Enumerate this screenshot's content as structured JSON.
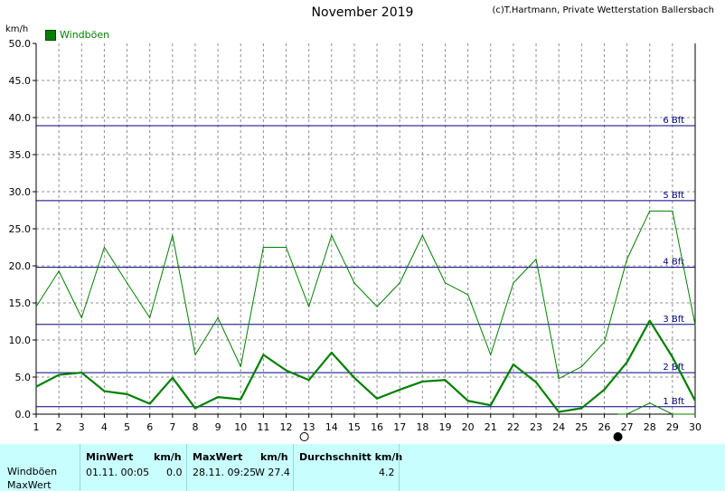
{
  "header": {
    "title": "November 2019",
    "credit": "(c)T.Hartmann, Private Wetterstation Ballersbach",
    "unit": "km/h",
    "legend": "Windböen"
  },
  "chart_data": {
    "type": "line",
    "title": "November 2019",
    "ylabel": "km/h",
    "xlabel": "",
    "xlim": [
      1,
      30
    ],
    "ylim": [
      0,
      50
    ],
    "x_ticks": [
      1,
      2,
      3,
      4,
      5,
      6,
      7,
      8,
      9,
      10,
      11,
      12,
      13,
      14,
      15,
      16,
      17,
      18,
      19,
      20,
      21,
      22,
      23,
      24,
      25,
      26,
      27,
      28,
      29,
      30
    ],
    "y_ticks": [
      "0.0",
      "5.0",
      "10.0",
      "15.0",
      "20.0",
      "25.0",
      "30.0",
      "35.0",
      "40.0",
      "45.0",
      "50.0"
    ],
    "grid": true,
    "legend_position": "top-left",
    "series": [
      {
        "name": "Windböen",
        "color": "#008000",
        "x": [
          1,
          2,
          3,
          4,
          5,
          6,
          7,
          8,
          9,
          10,
          11,
          12,
          13,
          14,
          15,
          16,
          17,
          18,
          19,
          20,
          21,
          22,
          23,
          24,
          25,
          26,
          27,
          28,
          29,
          30
        ],
        "values": [
          14.5,
          19.3,
          13.0,
          22.5,
          17.7,
          13.0,
          24.1,
          8.0,
          13.0,
          6.4,
          22.5,
          22.5,
          14.5,
          24.1,
          17.7,
          14.5,
          17.7,
          24.1,
          17.7,
          16.1,
          8.0,
          17.7,
          20.9,
          4.8,
          6.4,
          9.7,
          20.9,
          27.4,
          27.4,
          12.0
        ]
      },
      {
        "name": "",
        "color": "#008000",
        "thick": true,
        "x": [
          1,
          2,
          3,
          4,
          5,
          6,
          7,
          8,
          9,
          10,
          11,
          12,
          13,
          14,
          15,
          16,
          17,
          18,
          19,
          20,
          21,
          22,
          23,
          24,
          25,
          26,
          27,
          28,
          29,
          30
        ],
        "values": [
          3.7,
          5.3,
          5.6,
          3.1,
          2.7,
          1.4,
          4.9,
          0.8,
          2.3,
          2.0,
          8.0,
          5.9,
          4.6,
          8.3,
          4.9,
          2.1,
          3.3,
          4.4,
          4.6,
          1.8,
          1.2,
          6.7,
          4.3,
          0.3,
          0.8,
          3.3,
          7.0,
          12.6,
          7.7,
          1.8
        ]
      },
      {
        "name": "",
        "color": "#008000",
        "thin": true,
        "x": [
          26.6,
          27,
          28,
          29,
          30
        ],
        "values": [
          0,
          0,
          1.5,
          0,
          0
        ]
      }
    ],
    "reference_lines": [
      {
        "value": 1.0,
        "label": "1 Bft"
      },
      {
        "value": 5.6,
        "label": "2 Bft"
      },
      {
        "value": 12.1,
        "label": "3 Bft"
      },
      {
        "value": 19.8,
        "label": "4 Bft"
      },
      {
        "value": 28.8,
        "label": "5 Bft"
      },
      {
        "value": 38.9,
        "label": "6 Bft"
      }
    ],
    "reference_color": "#000080",
    "moon_phases": [
      {
        "day": 12.8,
        "phase": "full"
      },
      {
        "day": 26.6,
        "phase": "new"
      }
    ]
  },
  "table": {
    "row1": "Windböen",
    "row2": "MaxWert",
    "min_header": "MinWert",
    "min_unit": "km/h",
    "min_time": "01.11.  00:05",
    "min_value": "0.0",
    "max_header": "MaxWert",
    "max_unit": "km/h",
    "max_time": "28.11.  09:25",
    "max_value": "W 27.4",
    "avg_header": "Durchschnitt km/h",
    "avg_value": "4.2"
  }
}
